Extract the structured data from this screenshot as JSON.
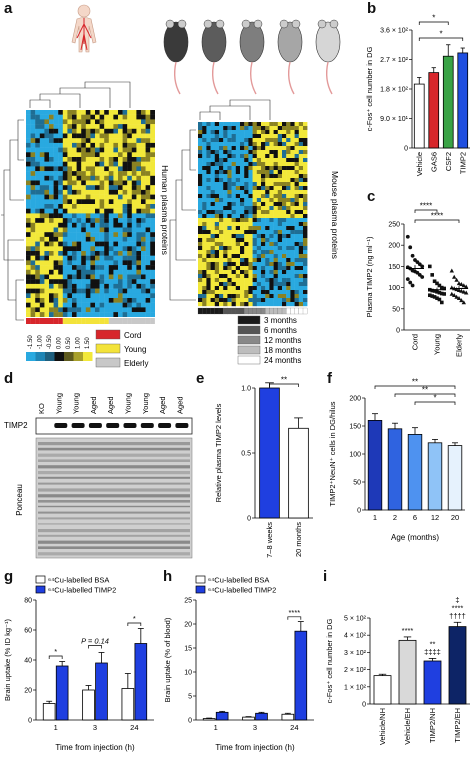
{
  "panel_letters": [
    "a",
    "b",
    "c",
    "d",
    "e",
    "f",
    "g",
    "h",
    "i"
  ],
  "panel_a": {
    "human_label": "Human plasma proteins",
    "mouse_label": "Mouse plasma proteins",
    "scale_ticks": [
      "-1.50",
      "-1.00",
      "-0.50",
      "0.00",
      "0.50",
      "1.00",
      "1.50"
    ],
    "human_legend": [
      {
        "label": "Cord",
        "color": "#d7262b"
      },
      {
        "label": "Young",
        "color": "#f3e33a"
      },
      {
        "label": "Elderly",
        "color": "#c8c8c8"
      }
    ],
    "mouse_legend": [
      {
        "label": "3 months",
        "color": "#1a1a1a"
      },
      {
        "label": "6 months",
        "color": "#555555"
      },
      {
        "label": "12 months",
        "color": "#888888"
      },
      {
        "label": "18 months",
        "color": "#bdbdbd"
      },
      {
        "label": "24 months",
        "color": "#ffffff"
      }
    ],
    "mouse_colors": [
      "#3a3a3a",
      "#5c5c5c",
      "#7e7e7e",
      "#a6a6a6",
      "#d6d6d6"
    ],
    "heatmap_colors": {
      "low": "#29a9e0",
      "mid": "#111111",
      "high": "#f2e83a"
    }
  },
  "panel_d": {
    "lane_labels": [
      "KO",
      "Young",
      "Young",
      "Aged",
      "Aged",
      "Young",
      "Young",
      "Aged",
      "Aged"
    ],
    "band_label": "TIMP2",
    "stain_label": "Ponceau"
  },
  "chart_data": [
    {
      "panel": "b",
      "type": "bar",
      "categories": [
        "Vehicle",
        "GAS6",
        "CSF2",
        "TIMP2"
      ],
      "values": [
        195,
        230,
        280,
        290
      ],
      "errors": [
        20,
        15,
        35,
        15
      ],
      "colors": [
        "#ffffff",
        "#d7262b",
        "#3aa346",
        "#1f4fe0"
      ],
      "ylabel": "c-Fos⁺ cell number in DG",
      "ylim": [
        0,
        360
      ],
      "yticks": [
        0,
        90,
        180,
        270,
        360
      ],
      "ytick_labels": [
        "0",
        "9.0 × 10¹",
        "1.8 × 10²",
        "2.7 × 10²",
        "3.6 × 10²"
      ],
      "significance": [
        "*",
        "*"
      ]
    },
    {
      "panel": "c",
      "type": "scatter",
      "categories": [
        "Cord",
        "Young",
        "Elderly"
      ],
      "means": [
        145,
        95,
        98
      ],
      "errors": [
        8,
        5,
        6
      ],
      "markers": [
        "circle",
        "square",
        "triangle"
      ],
      "points": [
        [
          220,
          195,
          175,
          165,
          160,
          155,
          150,
          148,
          145,
          140,
          138,
          135,
          130,
          125,
          120,
          112,
          105
        ],
        [
          150,
          130,
          115,
          110,
          105,
          100,
          98,
          95,
          93,
          92,
          90,
          88,
          86,
          85,
          82,
          80,
          78,
          75,
          72,
          65
        ],
        [
          140,
          125,
          118,
          110,
          108,
          105,
          102,
          100,
          98,
          96,
          94,
          92,
          90,
          88,
          85,
          82,
          78,
          75,
          70,
          65
        ]
      ],
      "ylabel": "Plasma TIMP2 (ng ml⁻¹)",
      "ylim": [
        0,
        250
      ],
      "yticks": [
        0,
        50,
        100,
        150,
        200,
        250
      ],
      "significance": [
        "****",
        "****"
      ]
    },
    {
      "panel": "e",
      "type": "bar",
      "categories": [
        "7–8 weeks",
        "20 months"
      ],
      "values": [
        1.0,
        0.69
      ],
      "errors": [
        0.04,
        0.08
      ],
      "colors": [
        "#1f3fe0",
        "#ffffff"
      ],
      "ylabel": "Relative plasma TIMP2 levels",
      "ylim": [
        0,
        1.0
      ],
      "yticks": [
        0,
        0.5,
        1.0
      ],
      "ytick_labels": [
        "0",
        "0.5",
        "1.0"
      ],
      "significance": [
        "**"
      ]
    },
    {
      "panel": "f",
      "type": "bar",
      "categories": [
        "1",
        "2",
        "6",
        "12",
        "20"
      ],
      "values": [
        160,
        145,
        135,
        120,
        115
      ],
      "errors": [
        12,
        10,
        12,
        6,
        5
      ],
      "colors": [
        "#1e39b8",
        "#2f63e0",
        "#4e92f0",
        "#8fc3f7",
        "#e6f2fd"
      ],
      "xlabel": "Age (months)",
      "ylabel": "TIMP2⁺NeuN⁺ cells in DG/hilus",
      "ylim": [
        0,
        200
      ],
      "yticks": [
        0,
        50,
        100,
        150,
        200
      ],
      "significance": [
        "**",
        "**",
        "*"
      ]
    },
    {
      "panel": "g",
      "type": "bar",
      "categories": [
        "1",
        "3",
        "24"
      ],
      "series": [
        {
          "name": "⁶⁴Cu-labelled BSA",
          "values": [
            11,
            20,
            21
          ],
          "errors": [
            1.5,
            3,
            10
          ],
          "color": "#ffffff"
        },
        {
          "name": "⁶⁴Cu-labelled TIMP2",
          "values": [
            36,
            38,
            51
          ],
          "errors": [
            3,
            7,
            10
          ],
          "color": "#1f3fe0"
        }
      ],
      "xlabel": "Time from injection (h)",
      "ylabel": "Brain uptake (% ID kg⁻¹)",
      "ylim": [
        0,
        80
      ],
      "yticks": [
        0,
        20,
        40,
        60,
        80
      ],
      "annotations": [
        "*",
        "P = 0.14",
        "*"
      ]
    },
    {
      "panel": "h",
      "type": "bar",
      "categories": [
        "1",
        "3",
        "24"
      ],
      "series": [
        {
          "name": "⁶⁴Cu-labelled BSA",
          "values": [
            0.3,
            0.6,
            1.2
          ],
          "errors": [
            0.1,
            0.1,
            0.2
          ],
          "color": "#ffffff"
        },
        {
          "name": "⁶⁴Cu-labelled TIMP2",
          "values": [
            1.6,
            1.4,
            18.5
          ],
          "errors": [
            0.2,
            0.2,
            2.0
          ],
          "color": "#1f3fe0"
        }
      ],
      "xlabel": "Time from injection (h)",
      "ylabel": "Brain uptake (% of blood)",
      "ylim": [
        0,
        25
      ],
      "yticks": [
        0,
        5,
        10,
        15,
        20,
        25
      ],
      "annotations": [
        "****"
      ]
    },
    {
      "panel": "i",
      "type": "bar",
      "categories": [
        "Vehicle/NH",
        "Vehicle/EH",
        "TIMP2/NH",
        "TIMP2/EH"
      ],
      "values": [
        165,
        370,
        250,
        450
      ],
      "errors": [
        8,
        20,
        15,
        25
      ],
      "colors": [
        "#ffffff",
        "#d9d9d9",
        "#1f3fe0",
        "#0d2466"
      ],
      "ylabel": "c-Fos⁺ cell number in DG",
      "ylim": [
        0,
        500
      ],
      "yticks": [
        0,
        100,
        200,
        300,
        400,
        500
      ],
      "ytick_labels": [
        "0",
        "1 × 10²",
        "2 × 10²",
        "3 × 10²",
        "4 × 10²",
        "5 × 10²"
      ],
      "annotations": [
        "****",
        "**",
        "‡‡‡‡",
        "‡",
        "****",
        "††††"
      ]
    }
  ]
}
